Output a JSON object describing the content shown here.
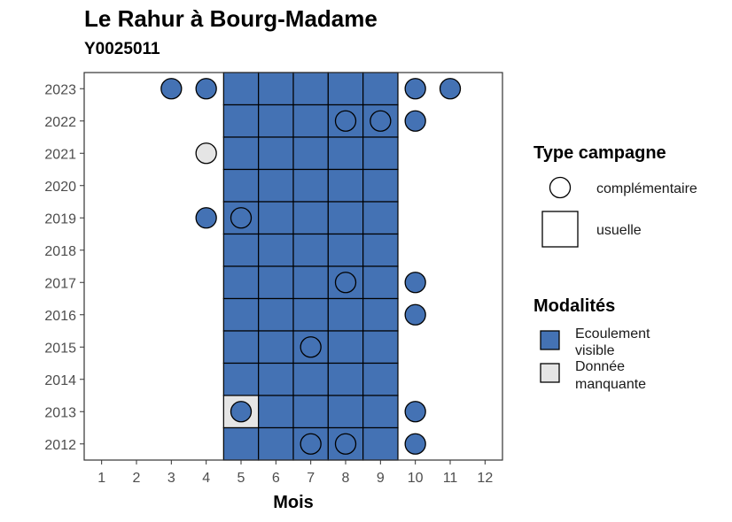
{
  "title": "Le Rahur à Bourg-Madame",
  "subtitle": "Y0025011",
  "colors": {
    "Ecoulement visible": "#4472b4",
    "Donnée manquante": "#e5e5e5"
  },
  "chart_data": {
    "type": "heatmap",
    "title": "Le Rahur à Bourg-Madame",
    "subtitle": "Y0025011",
    "xlabel": "Mois",
    "ylabel": "",
    "x_ticks": [
      1,
      2,
      3,
      4,
      5,
      6,
      7,
      8,
      9,
      10,
      11,
      12
    ],
    "y_ticks": [
      2012,
      2013,
      2014,
      2015,
      2016,
      2017,
      2018,
      2019,
      2020,
      2021,
      2022,
      2023
    ],
    "xlim": [
      0.5,
      12.5
    ],
    "ylim": [
      2011.5,
      2023.5
    ],
    "grid": false,
    "legend_position": "right",
    "legend": {
      "shape_title": "Type campagne",
      "shape_entries": [
        {
          "shape": "circle",
          "label": "complémentaire"
        },
        {
          "shape": "square",
          "label": "usuelle"
        }
      ],
      "fill_title": "Modalités",
      "fill_entries": [
        {
          "label_lines": [
            "Ecoulement",
            "visible"
          ],
          "value": "Ecoulement visible"
        },
        {
          "label_lines": [
            "Donnée",
            "manquante"
          ],
          "value": "Donnée manquante"
        }
      ]
    },
    "usuelle": [
      {
        "year": 2023,
        "months": [
          5,
          6,
          7,
          8,
          9
        ],
        "value": "Ecoulement visible"
      },
      {
        "year": 2022,
        "months": [
          5,
          6,
          7,
          8,
          9
        ],
        "value": "Ecoulement visible"
      },
      {
        "year": 2021,
        "months": [
          5,
          6,
          7,
          8,
          9
        ],
        "value": "Ecoulement visible"
      },
      {
        "year": 2020,
        "months": [
          5,
          6,
          7,
          8,
          9
        ],
        "value": "Ecoulement visible"
      },
      {
        "year": 2019,
        "months": [
          5,
          6,
          7,
          8,
          9
        ],
        "value": "Ecoulement visible"
      },
      {
        "year": 2018,
        "months": [
          5,
          6,
          7,
          8,
          9
        ],
        "value": "Ecoulement visible"
      },
      {
        "year": 2017,
        "months": [
          5,
          6,
          7,
          8,
          9
        ],
        "value": "Ecoulement visible"
      },
      {
        "year": 2016,
        "months": [
          5,
          6,
          7,
          8,
          9
        ],
        "value": "Ecoulement visible"
      },
      {
        "year": 2015,
        "months": [
          5,
          6,
          7,
          8,
          9
        ],
        "value": "Ecoulement visible"
      },
      {
        "year": 2014,
        "months": [
          5,
          6,
          7,
          8,
          9
        ],
        "value": "Ecoulement visible"
      },
      {
        "year": 2013,
        "months": [
          5
        ],
        "value": "Donnée manquante"
      },
      {
        "year": 2013,
        "months": [
          6,
          7,
          8,
          9
        ],
        "value": "Ecoulement visible"
      },
      {
        "year": 2012,
        "months": [
          5,
          6,
          7,
          8,
          9
        ],
        "value": "Ecoulement visible"
      }
    ],
    "complementaire": [
      {
        "year": 2023,
        "month": 3,
        "value": "Ecoulement visible"
      },
      {
        "year": 2023,
        "month": 4,
        "value": "Ecoulement visible"
      },
      {
        "year": 2023,
        "month": 10,
        "value": "Ecoulement visible"
      },
      {
        "year": 2023,
        "month": 11,
        "value": "Ecoulement visible"
      },
      {
        "year": 2022,
        "month": 8,
        "value": "Ecoulement visible"
      },
      {
        "year": 2022,
        "month": 9,
        "value": "Ecoulement visible"
      },
      {
        "year": 2022,
        "month": 10,
        "value": "Ecoulement visible"
      },
      {
        "year": 2021,
        "month": 4,
        "value": "Donnée manquante"
      },
      {
        "year": 2019,
        "month": 4,
        "value": "Ecoulement visible"
      },
      {
        "year": 2019,
        "month": 5,
        "value": "Ecoulement visible"
      },
      {
        "year": 2017,
        "month": 8,
        "value": "Ecoulement visible"
      },
      {
        "year": 2017,
        "month": 10,
        "value": "Ecoulement visible"
      },
      {
        "year": 2016,
        "month": 10,
        "value": "Ecoulement visible"
      },
      {
        "year": 2015,
        "month": 7,
        "value": "Ecoulement visible"
      },
      {
        "year": 2013,
        "month": 5,
        "value": "Ecoulement visible"
      },
      {
        "year": 2013,
        "month": 10,
        "value": "Ecoulement visible"
      },
      {
        "year": 2012,
        "month": 7,
        "value": "Ecoulement visible"
      },
      {
        "year": 2012,
        "month": 8,
        "value": "Ecoulement visible"
      },
      {
        "year": 2012,
        "month": 10,
        "value": "Ecoulement visible"
      }
    ]
  }
}
